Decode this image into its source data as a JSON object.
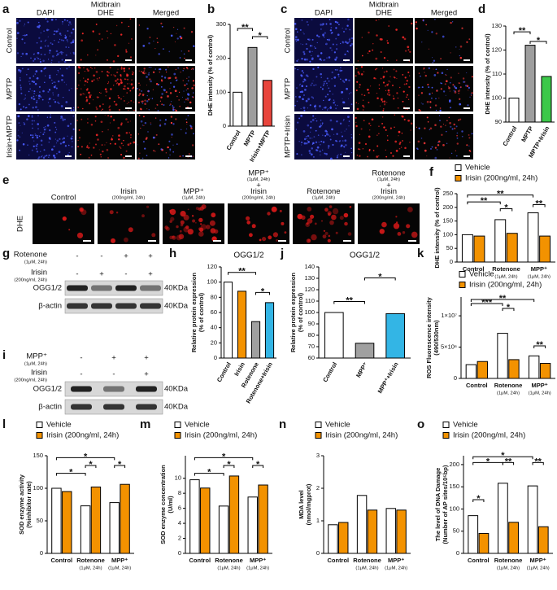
{
  "image_panels": [
    {
      "label": "a",
      "title": "Midbrain",
      "columns": [
        "DAPI",
        "DHE",
        "Merged"
      ],
      "rows": [
        "Control",
        "MPTP",
        "Irisin+MPTP"
      ]
    },
    {
      "label": "c",
      "title": "Midbrain",
      "columns": [
        "DAPI",
        "DHE",
        "Merged"
      ],
      "rows": [
        "Control",
        "MPTP",
        "MPTP+Irisin"
      ]
    },
    {
      "label": "e",
      "row": "DHE",
      "columns": [
        [
          "Control"
        ],
        [
          "Irisin",
          "(200ng/ml, 24h)"
        ],
        [
          "MPP⁺",
          "(1μM, 24h)"
        ],
        [
          "MPP⁺",
          "(1μM, 24h)",
          "+",
          "Irisin",
          "(200ng/ml, 24h)"
        ],
        [
          "Rotenone",
          "(1μM, 24h)"
        ],
        [
          "Rotenone",
          "(1μM, 24h)",
          "+",
          "Irisin",
          "(200ng/ml, 24h)"
        ]
      ]
    }
  ],
  "blots": [
    {
      "label": "g",
      "treatments": [
        {
          "name": "Rotenone",
          "note": "(1μM, 24h)",
          "signs": [
            "-",
            "-",
            "+",
            "+"
          ]
        },
        {
          "name": "Irisin",
          "note": "(200ng/ml, 24h)",
          "signs": [
            "-",
            "+",
            "-",
            "+"
          ]
        }
      ],
      "bands": [
        {
          "name": "OGG1/2",
          "size": "40KDa"
        },
        {
          "name": "β-actin",
          "size": "40KDa"
        }
      ]
    },
    {
      "label": "i",
      "treatments": [
        {
          "name": "MPP⁺",
          "note": "(1μM, 24h)",
          "signs": [
            "-",
            "+",
            "+"
          ]
        },
        {
          "name": "Irisin",
          "note": "(200ng/ml, 24h)",
          "signs": [
            "-",
            "-",
            "+"
          ]
        }
      ],
      "bands": [
        {
          "name": "OGG1/2",
          "size": "40KDa"
        },
        {
          "name": "β-actin",
          "size": "40KDa"
        }
      ]
    }
  ],
  "chart_data": [
    {
      "label": "b",
      "type": "bar",
      "ylabel": [
        "DHE intensity (% of control)"
      ],
      "categories": [
        "Control",
        "MPTP",
        "Irisin+MPTP"
      ],
      "values": [
        100,
        232,
        135
      ],
      "colors": [
        "#ffffff",
        "#9e9e9e",
        "#e8453c"
      ],
      "ylim": [
        0,
        300
      ],
      "yticks": [
        0,
        100,
        200,
        300
      ],
      "significance": [
        "**",
        "*"
      ]
    },
    {
      "label": "d",
      "type": "bar",
      "ylabel": [
        "DHE intensity (% of control)"
      ],
      "categories": [
        "Control",
        "MPTP",
        "MPTP+Irisin"
      ],
      "values": [
        100,
        122,
        109
      ],
      "colors": [
        "#ffffff",
        "#9e9e9e",
        "#3cc84a"
      ],
      "ylim": [
        90,
        130
      ],
      "yticks": [
        90,
        100,
        110,
        120,
        130
      ],
      "significance": [
        "**",
        "*"
      ]
    },
    {
      "label": "f",
      "type": "bar",
      "ylabel": [
        "DHE intensity (% of control)"
      ],
      "categories": [
        "Control",
        "Rotenone",
        "MPP⁺"
      ],
      "category_notes": [
        null,
        "(1μM, 24h)",
        "(1μM, 24h)"
      ],
      "series": [
        {
          "name": "Vehicle",
          "color": "#ffffff",
          "values": [
            100,
            155,
            180
          ]
        },
        {
          "name": "Irisin (200ng/ml, 24h)",
          "color": "#f39200",
          "values": [
            95,
            105,
            95
          ]
        }
      ],
      "ylim": [
        0,
        250
      ],
      "yticks": [
        0,
        50,
        100,
        150,
        200,
        250
      ],
      "significance": [
        "**",
        "**",
        "*",
        "**"
      ]
    },
    {
      "label": "h",
      "type": "bar",
      "title": "OGG1/2",
      "ylabel": [
        "Relative protein expression",
        "(% of control)"
      ],
      "categories": [
        "Control",
        "Irisin",
        "Rotenone",
        "Rotenone+Irisin"
      ],
      "values": [
        100,
        88,
        48,
        73
      ],
      "colors": [
        "#ffffff",
        "#f39200",
        "#a0a0a0",
        "#33b5e5"
      ],
      "ylim": [
        0,
        120
      ],
      "yticks": [
        0,
        20,
        40,
        60,
        80,
        100,
        120
      ],
      "significance": [
        "**",
        "*"
      ]
    },
    {
      "label": "j",
      "type": "bar",
      "title": "OGG1/2",
      "ylabel": [
        "Relative protein expression",
        "(% of control)"
      ],
      "categories": [
        "Control",
        "MPP⁺",
        "MPP⁺+Irisin"
      ],
      "values": [
        100,
        73,
        99
      ],
      "colors": [
        "#ffffff",
        "#a0a0a0",
        "#33b5e5"
      ],
      "ylim": [
        60,
        140
      ],
      "yticks": [
        60,
        70,
        80,
        90,
        100,
        110,
        120,
        130,
        140
      ],
      "significance": [
        "**",
        "*"
      ]
    },
    {
      "label": "k",
      "type": "bar",
      "ylabel": [
        "ROS Fluorescence intensity",
        "(490/530nm)"
      ],
      "categories": [
        "Control",
        "Rotenone",
        "MPP⁺"
      ],
      "category_notes": [
        null,
        "(1μM, 24h)",
        "(1μM, 24h)"
      ],
      "series": [
        {
          "name": "Vehicle",
          "color": "#ffffff",
          "values": [
            2200000,
            7200000,
            3600000
          ]
        },
        {
          "name": "Irisin (200ng/ml, 24h)",
          "color": "#f39200",
          "values": [
            2700000,
            3000000,
            2400000
          ]
        }
      ],
      "ylim": [
        0,
        13000000
      ],
      "yticks": [
        0,
        {
          "value": 5000000,
          "label": "5×10⁶"
        },
        {
          "value": 10000000,
          "label": "1×10⁷"
        }
      ],
      "significance": [
        "**",
        "***",
        "*",
        "**"
      ]
    },
    {
      "label": "l",
      "type": "bar",
      "ylabel": [
        "SOD enzyme activity",
        "(%inhibitor rate)"
      ],
      "categories": [
        "Control",
        "Rotenone",
        "MPP⁺"
      ],
      "category_notes": [
        null,
        "(1μM, 24h)",
        "(1μM, 24h)"
      ],
      "series": [
        {
          "name": "Vehicle",
          "color": "#ffffff",
          "values": [
            100,
            73,
            78
          ]
        },
        {
          "name": "Irisin (200ng/ml, 24h)",
          "color": "#f39200",
          "values": [
            95,
            102,
            106
          ]
        }
      ],
      "ylim": [
        0,
        150
      ],
      "yticks": [
        0,
        50,
        100,
        150
      ],
      "significance": [
        "*",
        "*",
        "*",
        "*"
      ]
    },
    {
      "label": "m",
      "type": "bar",
      "ylabel": [
        "SOD enzyme concentration",
        "(U/ml)"
      ],
      "categories": [
        "Control",
        "Rotenone",
        "MPP⁺"
      ],
      "category_notes": [
        null,
        "(1μM, 24h)",
        "(1μM, 24h)"
      ],
      "series": [
        {
          "name": "Vehicle",
          "color": "#ffffff",
          "values": [
            9.8,
            6.3,
            7.5
          ]
        },
        {
          "name": "Irisin (200ng/ml, 24h)",
          "color": "#f39200",
          "values": [
            8.7,
            10.3,
            9.1
          ]
        }
      ],
      "ylim": [
        0,
        13
      ],
      "yticks": [
        0,
        2,
        4,
        6,
        8,
        10
      ],
      "significance": [
        "*",
        "*",
        "*",
        "*"
      ]
    },
    {
      "label": "n",
      "type": "bar",
      "ylabel": [
        "MDA level",
        "(nmol/mgprot)"
      ],
      "categories": [
        "Control",
        "Rotenone",
        "MPP⁺"
      ],
      "category_notes": [
        null,
        "(1μM, 24h)",
        "(1μM, 24h)"
      ],
      "series": [
        {
          "name": "Vehicle",
          "color": "#ffffff",
          "values": [
            0.88,
            1.78,
            1.38
          ]
        },
        {
          "name": "Irisin (200ng/ml, 24h)",
          "color": "#f39200",
          "values": [
            0.95,
            1.33,
            1.33
          ]
        }
      ],
      "ylim": [
        0,
        3
      ],
      "yticks": [
        0,
        1,
        2,
        3
      ],
      "significance": []
    },
    {
      "label": "o",
      "type": "bar",
      "ylabel": [
        "The level of DNA Damage",
        "(Number of AP sites/10⁵bp)"
      ],
      "categories": [
        "Control",
        "Rotenone",
        "MPP⁺"
      ],
      "category_notes": [
        null,
        "(1μM, 24h)",
        "(1μM, 24h)"
      ],
      "series": [
        {
          "name": "Vehicle",
          "color": "#ffffff",
          "values": [
            85,
            158,
            152
          ]
        },
        {
          "name": "Irisin (200ng/ml, 24h)",
          "color": "#f39200",
          "values": [
            45,
            70,
            60
          ]
        }
      ],
      "ylim": [
        0,
        220
      ],
      "yticks": [
        0,
        50,
        100,
        150,
        200
      ],
      "significance": [
        "*",
        "*",
        "**",
        "*",
        "**"
      ]
    }
  ]
}
